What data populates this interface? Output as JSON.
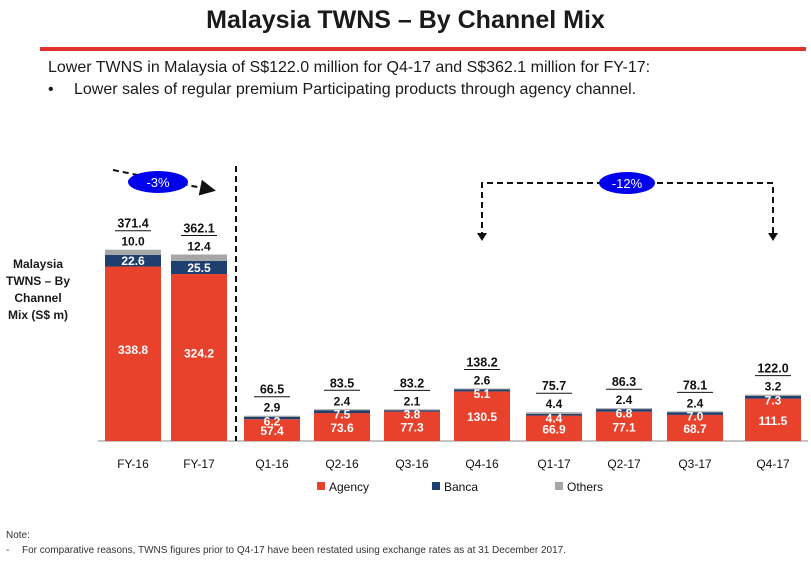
{
  "title": "Malaysia TWNS – By Channel Mix",
  "headline": "Lower TWNS in Malaysia of S$122.0 million for Q4-17 and S$362.1 million for FY-17:",
  "bullets": [
    "Lower sales of regular premium Participating products through agency channel."
  ],
  "note_title": "Note:",
  "note_text": "For comparative reasons, TWNS figures prior to Q4-17 have been restated using exchange rates as at 31 December 2017.",
  "colors": {
    "agency": "#e8412c",
    "banca": "#1f3f6e",
    "others": "#a6a6a6",
    "accent": "#0000ee",
    "rule": "#e0322b"
  },
  "chart_data": {
    "type": "bar",
    "stacked": true,
    "ylabel": "Malaysia TWNS – By Channel Mix (S$ m)",
    "categories": [
      "FY-16",
      "FY-17",
      "Q1-16",
      "Q2-16",
      "Q3-16",
      "Q4-16",
      "Q1-17",
      "Q2-17",
      "Q3-17",
      "Q4-17"
    ],
    "series": [
      {
        "name": "Agency",
        "values": [
          338.8,
          324.2,
          57.4,
          73.6,
          77.3,
          130.5,
          66.9,
          77.1,
          68.7,
          111.5
        ]
      },
      {
        "name": "Banca",
        "values": [
          22.6,
          25.5,
          6.2,
          7.5,
          3.8,
          5.1,
          4.4,
          6.8,
          7.0,
          7.3
        ]
      },
      {
        "name": "Others",
        "values": [
          10.0,
          12.4,
          2.9,
          2.4,
          2.1,
          2.6,
          4.4,
          2.4,
          2.4,
          3.2
        ]
      }
    ],
    "banca_labels": [
      "22.6",
      "25.5",
      "6.2",
      "7.5",
      "3.8",
      "5.1",
      "4.4",
      "6.8",
      "7.0",
      "7.3"
    ],
    "agency_labels": [
      "338.8",
      "324.2",
      "57.4",
      "73.6",
      "77.3",
      "130.5",
      "66.9",
      "77.1",
      "68.7",
      "111.5"
    ],
    "others_labels": [
      "10.0",
      "12.4",
      "2.9",
      "2.4",
      "2.1",
      "2.6",
      "4.4",
      "2.4",
      "2.4",
      "3.2"
    ],
    "totals": [
      "371.4",
      "362.1",
      "66.5",
      "83.5",
      "83.2",
      "138.2",
      "75.7",
      "86.3",
      "78.1",
      "122.0"
    ],
    "legend": [
      "Agency",
      "Banca",
      "Others"
    ],
    "annotations": [
      {
        "label": "-3%",
        "from": "FY-16",
        "to": "FY-17"
      },
      {
        "label": "-12%",
        "from": "Q4-16",
        "to": "Q4-17"
      }
    ]
  }
}
